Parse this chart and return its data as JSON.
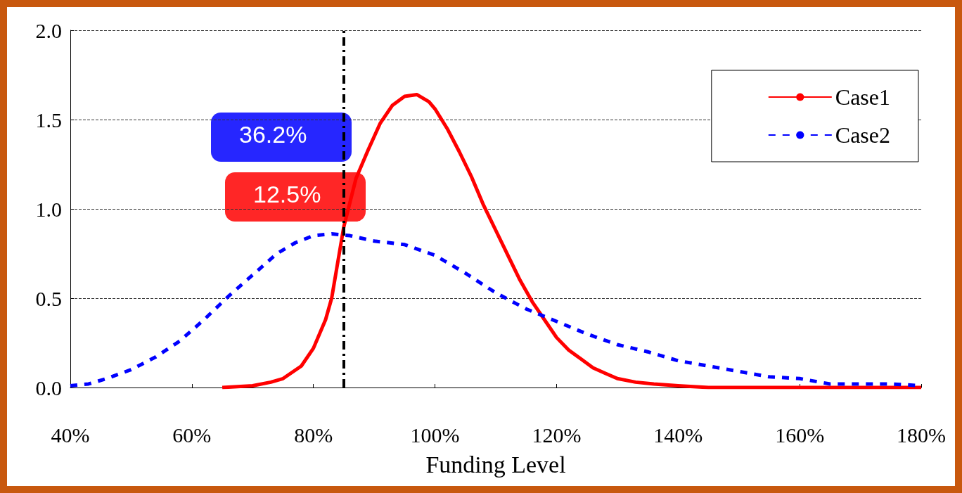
{
  "chart_data": {
    "type": "line",
    "xlabel": "Funding Level",
    "xlim": [
      40,
      180
    ],
    "xticks": [
      {
        "value": 40,
        "label": "40%"
      },
      {
        "value": 60,
        "label": "60%"
      },
      {
        "value": 80,
        "label": "80%"
      },
      {
        "value": 100,
        "label": "100%"
      },
      {
        "value": 120,
        "label": "120%"
      },
      {
        "value": 140,
        "label": "140%"
      },
      {
        "value": 160,
        "label": "160%"
      },
      {
        "value": 180,
        "label": "180%"
      }
    ],
    "ylim": [
      0,
      2
    ],
    "yticks": [
      {
        "value": 0,
        "label": "0.0"
      },
      {
        "value": 0.5,
        "label": "0.5"
      },
      {
        "value": 1,
        "label": "1.0"
      },
      {
        "value": 1.5,
        "label": "1.5"
      },
      {
        "value": 2,
        "label": "2.0"
      }
    ],
    "grid": "y",
    "legend": "top right",
    "marker": "none",
    "series": [
      {
        "name": "Case1",
        "color": "#ff0000",
        "line_style": "solid",
        "x": [
          65,
          70,
          73,
          75,
          78,
          80,
          82,
          83,
          85,
          87,
          89,
          91,
          93,
          95,
          97,
          99,
          100,
          102,
          104,
          106,
          108,
          110,
          112,
          114,
          116,
          118,
          120,
          122,
          124,
          126,
          128,
          130,
          133,
          136,
          140,
          145,
          150,
          160,
          180
        ],
        "values": [
          0,
          0.01,
          0.03,
          0.05,
          0.12,
          0.22,
          0.38,
          0.5,
          0.9,
          1.17,
          1.33,
          1.48,
          1.58,
          1.63,
          1.64,
          1.6,
          1.56,
          1.45,
          1.32,
          1.18,
          1.02,
          0.88,
          0.74,
          0.6,
          0.48,
          0.38,
          0.28,
          0.21,
          0.16,
          0.11,
          0.08,
          0.05,
          0.03,
          0.02,
          0.01,
          0,
          0,
          0,
          0
        ]
      },
      {
        "name": "Case2",
        "color": "#0000ff",
        "line_style": "dashed",
        "x": [
          40,
          43,
          46,
          50,
          54,
          58,
          62,
          66,
          70,
          74,
          77,
          80,
          83,
          86,
          90,
          95,
          100,
          105,
          110,
          115,
          120,
          125,
          130,
          135,
          140,
          145,
          150,
          155,
          160,
          165,
          170,
          175,
          180
        ],
        "values": [
          0.01,
          0.02,
          0.05,
          0.1,
          0.17,
          0.26,
          0.38,
          0.51,
          0.63,
          0.75,
          0.81,
          0.85,
          0.86,
          0.85,
          0.82,
          0.8,
          0.74,
          0.64,
          0.53,
          0.44,
          0.37,
          0.3,
          0.24,
          0.2,
          0.15,
          0.12,
          0.09,
          0.06,
          0.05,
          0.02,
          0.02,
          0.02,
          0.01
        ]
      }
    ],
    "ref_lines": [
      {
        "axis": "x",
        "value": 85,
        "label": null,
        "color": "#000000",
        "line_style": "dashed"
      }
    ],
    "annotations": [
      "36.2%",
      "12.5%"
    ]
  }
}
